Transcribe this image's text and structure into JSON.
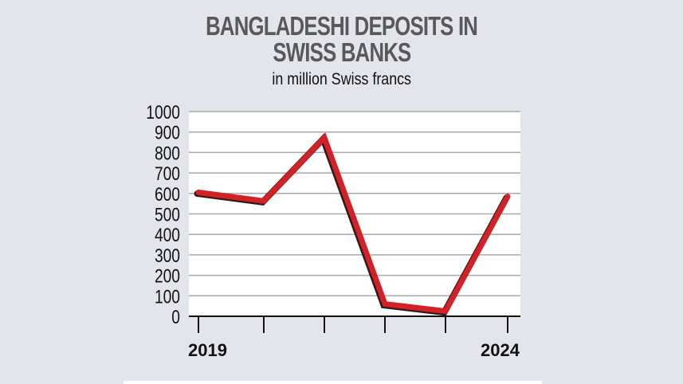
{
  "chart_data": {
    "type": "line",
    "title_lines": [
      "BANGLADESHI DEPOSITS IN",
      "SWISS BANKS"
    ],
    "subtitle": "in million Swiss francs",
    "x": [
      2019,
      2020,
      2021,
      2022,
      2023,
      2024
    ],
    "x_tick_labels": [
      "2019",
      "",
      "",
      "",
      "",
      "2024"
    ],
    "values": [
      605,
      563,
      872,
      60,
      25,
      585
    ],
    "ylim": [
      0,
      1000
    ],
    "y_ticks": [
      "0",
      "100",
      "200",
      "300",
      "400",
      "500",
      "600",
      "700",
      "800",
      "900",
      "1000"
    ],
    "grid": true,
    "line_color": "#d42027",
    "background_color": "#e2e6ec"
  }
}
